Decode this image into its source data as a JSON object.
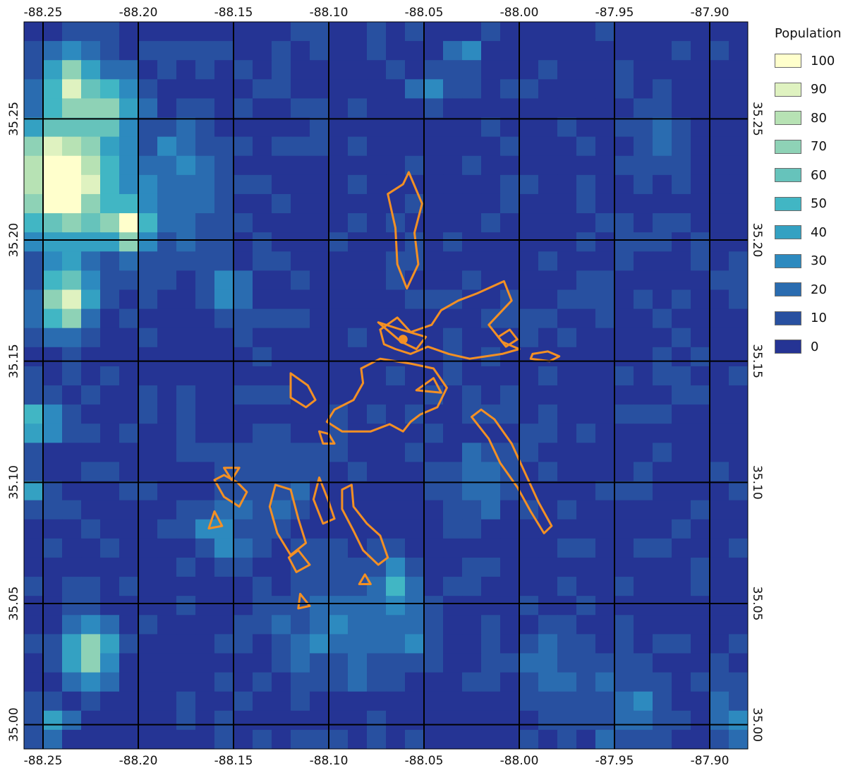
{
  "map": {
    "x_ticks": [
      "-88.25",
      "-88.20",
      "-88.15",
      "-88.10",
      "-88.05",
      "-88.00",
      "-87.95",
      "-87.90"
    ],
    "y_ticks": [
      "35.25",
      "35.20",
      "35.15",
      "35.10",
      "35.05",
      "35.00"
    ],
    "lon_range": [
      -88.26,
      -87.88
    ],
    "lat_range": [
      34.99,
      35.29
    ],
    "grid_cols": 38,
    "grid_rows": 38,
    "colors": {
      "water_outline": "#f39024",
      "gridline": "#000000",
      "marker": "#f39024"
    },
    "marker": {
      "lon": -88.061,
      "lat": 35.159
    },
    "hotspots": [
      {
        "lon": -88.24,
        "lat": 35.225,
        "r": 0.024,
        "v": 118
      },
      {
        "lon": -88.205,
        "lat": 35.205,
        "r": 0.01,
        "v": 90
      },
      {
        "lon": -88.238,
        "lat": 35.175,
        "r": 0.013,
        "v": 88
      },
      {
        "lon": -88.236,
        "lat": 35.265,
        "r": 0.013,
        "v": 70
      },
      {
        "lon": -88.215,
        "lat": 35.255,
        "r": 0.013,
        "v": 62
      },
      {
        "lon": -88.252,
        "lat": 35.125,
        "r": 0.009,
        "v": 55
      },
      {
        "lon": -88.226,
        "lat": 35.03,
        "r": 0.013,
        "v": 75
      },
      {
        "lon": -88.153,
        "lat": 35.18,
        "r": 0.009,
        "v": 40
      },
      {
        "lon": -88.252,
        "lat": 35.095,
        "r": 0.007,
        "v": 40
      },
      {
        "lon": -88.158,
        "lat": 35.08,
        "r": 0.01,
        "v": 35
      },
      {
        "lon": -88.065,
        "lat": 35.06,
        "r": 0.009,
        "v": 42
      },
      {
        "lon": -88.048,
        "lat": 35.262,
        "r": 0.007,
        "v": 35
      },
      {
        "lon": -88.03,
        "lat": 35.276,
        "r": 0.007,
        "v": 35
      },
      {
        "lon": -88.245,
        "lat": 35.0,
        "r": 0.007,
        "v": 45
      },
      {
        "lon": -87.89,
        "lat": 35.0,
        "r": 0.009,
        "v": 30
      },
      {
        "lon": -88.1,
        "lat": 35.04,
        "r": 0.025,
        "v": 20
      },
      {
        "lon": -88.06,
        "lat": 35.04,
        "r": 0.018,
        "v": 22
      },
      {
        "lon": -88.13,
        "lat": 35.1,
        "r": 0.02,
        "v": 15
      },
      {
        "lon": -88.18,
        "lat": 35.22,
        "r": 0.025,
        "v": 25
      },
      {
        "lon": -87.98,
        "lat": 35.02,
        "r": 0.02,
        "v": 16
      },
      {
        "lon": -87.94,
        "lat": 35.005,
        "r": 0.02,
        "v": 18
      },
      {
        "lon": -88.02,
        "lat": 35.1,
        "r": 0.02,
        "v": 12
      },
      {
        "lon": -87.93,
        "lat": 35.24,
        "r": 0.012,
        "v": 15
      }
    ],
    "outlines": [
      [
        [
          -88.058,
          35.228
        ],
        [
          -88.051,
          35.215
        ],
        [
          -88.055,
          35.203
        ],
        [
          -88.053,
          35.19
        ],
        [
          -88.059,
          35.18
        ],
        [
          -88.064,
          35.19
        ],
        [
          -88.065,
          35.205
        ],
        [
          -88.069,
          35.219
        ],
        [
          -88.061,
          35.223
        ]
      ],
      [
        [
          -88.073,
          35.163
        ],
        [
          -88.064,
          35.168
        ],
        [
          -88.057,
          35.162
        ],
        [
          -88.046,
          35.165
        ],
        [
          -88.041,
          35.171
        ],
        [
          -88.032,
          35.175
        ],
        [
          -88.022,
          35.178
        ],
        [
          -88.008,
          35.183
        ],
        [
          -88.004,
          35.175
        ],
        [
          -88.016,
          35.165
        ],
        [
          -88.009,
          35.158
        ],
        [
          -88.0,
          35.155
        ],
        [
          -88.009,
          35.153
        ],
        [
          -88.026,
          35.151
        ],
        [
          -88.037,
          35.153
        ],
        [
          -88.048,
          35.156
        ],
        [
          -88.057,
          35.153
        ],
        [
          -88.065,
          35.155
        ],
        [
          -88.071,
          35.157
        ]
      ],
      [
        [
          -88.073,
          35.151
        ],
        [
          -88.057,
          35.149
        ],
        [
          -88.045,
          35.147
        ],
        [
          -88.038,
          35.139
        ],
        [
          -88.043,
          35.131
        ],
        [
          -88.052,
          35.128
        ],
        [
          -88.057,
          35.125
        ],
        [
          -88.061,
          35.121
        ],
        [
          -88.068,
          35.124
        ],
        [
          -88.078,
          35.121
        ],
        [
          -88.093,
          35.121
        ],
        [
          -88.101,
          35.125
        ],
        [
          -88.097,
          35.13
        ],
        [
          -88.087,
          35.134
        ],
        [
          -88.082,
          35.141
        ],
        [
          -88.083,
          35.147
        ]
      ],
      [
        [
          -88.12,
          35.097
        ],
        [
          -88.116,
          35.085
        ],
        [
          -88.112,
          35.075
        ],
        [
          -88.12,
          35.07
        ],
        [
          -88.127,
          35.079
        ],
        [
          -88.131,
          35.09
        ],
        [
          -88.128,
          35.099
        ]
      ],
      [
        [
          -88.16,
          35.101
        ],
        [
          -88.155,
          35.094
        ],
        [
          -88.147,
          35.09
        ],
        [
          -88.143,
          35.096
        ],
        [
          -88.148,
          35.1
        ],
        [
          -88.155,
          35.103
        ]
      ],
      [
        [
          -88.16,
          35.088
        ],
        [
          -88.156,
          35.082
        ],
        [
          -88.163,
          35.081
        ]
      ],
      [
        [
          -88.105,
          35.102
        ],
        [
          -88.1,
          35.092
        ],
        [
          -88.097,
          35.085
        ],
        [
          -88.103,
          35.083
        ],
        [
          -88.108,
          35.093
        ]
      ],
      [
        [
          -88.088,
          35.099
        ],
        [
          -88.087,
          35.09
        ],
        [
          -88.08,
          35.083
        ],
        [
          -88.073,
          35.078
        ],
        [
          -88.069,
          35.069
        ],
        [
          -88.074,
          35.066
        ],
        [
          -88.082,
          35.072
        ],
        [
          -88.087,
          35.08
        ],
        [
          -88.093,
          35.089
        ],
        [
          -88.093,
          35.097
        ]
      ],
      [
        [
          -88.025,
          35.127
        ],
        [
          -88.016,
          35.118
        ],
        [
          -88.01,
          35.108
        ],
        [
          -88.001,
          35.098
        ],
        [
          -87.994,
          35.088
        ],
        [
          -87.987,
          35.079
        ],
        [
          -87.983,
          35.082
        ],
        [
          -87.99,
          35.092
        ],
        [
          -87.997,
          35.104
        ],
        [
          -88.004,
          35.116
        ],
        [
          -88.013,
          35.126
        ],
        [
          -88.02,
          35.13
        ]
      ],
      [
        [
          -88.12,
          35.145
        ],
        [
          -88.111,
          35.14
        ],
        [
          -88.107,
          35.134
        ],
        [
          -88.112,
          35.131
        ],
        [
          -88.12,
          35.135
        ]
      ],
      [
        [
          -88.105,
          35.121
        ],
        [
          -88.103,
          35.116
        ],
        [
          -88.097,
          35.116
        ],
        [
          -88.1,
          35.12
        ]
      ],
      [
        [
          -88.155,
          35.106
        ],
        [
          -88.151,
          35.101
        ],
        [
          -88.147,
          35.106
        ]
      ],
      [
        [
          -88.116,
          35.072
        ],
        [
          -88.11,
          35.066
        ],
        [
          -88.117,
          35.063
        ],
        [
          -88.121,
          35.069
        ]
      ],
      [
        [
          -88.081,
          35.062
        ],
        [
          -88.078,
          35.058
        ],
        [
          -88.084,
          35.058
        ]
      ],
      [
        [
          -88.115,
          35.054
        ],
        [
          -88.11,
          35.049
        ],
        [
          -88.116,
          35.048
        ]
      ],
      [
        [
          -88.074,
          35.166
        ],
        [
          -88.062,
          35.163
        ],
        [
          -88.049,
          35.16
        ],
        [
          -88.054,
          35.155
        ],
        [
          -88.062,
          35.158
        ]
      ],
      [
        [
          -87.993,
          35.153
        ],
        [
          -87.985,
          35.154
        ],
        [
          -87.979,
          35.152
        ],
        [
          -87.984,
          35.15
        ],
        [
          -87.994,
          35.151
        ]
      ],
      [
        [
          -88.011,
          35.16
        ],
        [
          -88.005,
          35.163
        ],
        [
          -88.001,
          35.159
        ],
        [
          -88.007,
          35.156
        ]
      ],
      [
        [
          -88.054,
          35.138
        ],
        [
          -88.045,
          35.143
        ],
        [
          -88.041,
          35.137
        ]
      ]
    ]
  },
  "legend": {
    "title": "Population",
    "items": [
      {
        "label": "100",
        "color": "#ffffcc"
      },
      {
        "label": "90",
        "color": "#dff2c0"
      },
      {
        "label": "80",
        "color": "#b7e2b4"
      },
      {
        "label": "70",
        "color": "#8ed2b6"
      },
      {
        "label": "60",
        "color": "#66c3bb"
      },
      {
        "label": "50",
        "color": "#41b6c4"
      },
      {
        "label": "40",
        "color": "#34a1c2"
      },
      {
        "label": "30",
        "color": "#2d8abf"
      },
      {
        "label": "20",
        "color": "#2a6cb0"
      },
      {
        "label": "10",
        "color": "#2850a0"
      },
      {
        "label": "0",
        "color": "#253494"
      }
    ]
  }
}
